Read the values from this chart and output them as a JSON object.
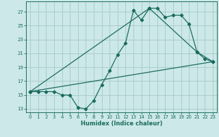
{
  "title": "",
  "xlabel": "Humidex (Indice chaleur)",
  "bg_color": "#cce8e8",
  "grid_color": "#aacccc",
  "line_color": "#1a6b5e",
  "xlim": [
    -0.5,
    23.5
  ],
  "ylim": [
    12.5,
    28.5
  ],
  "xticks": [
    0,
    1,
    2,
    3,
    4,
    5,
    6,
    7,
    8,
    9,
    10,
    11,
    12,
    13,
    14,
    15,
    16,
    17,
    18,
    19,
    20,
    21,
    22,
    23
  ],
  "yticks": [
    13,
    15,
    17,
    19,
    21,
    23,
    25,
    27
  ],
  "series1_x": [
    0,
    1,
    2,
    3,
    4,
    5,
    6,
    7,
    8,
    9,
    10,
    11,
    12,
    13,
    14,
    15,
    16,
    17,
    18,
    19,
    20,
    21,
    22,
    23
  ],
  "series1_y": [
    15.5,
    15.5,
    15.5,
    15.5,
    15.0,
    15.0,
    13.2,
    13.0,
    14.2,
    16.5,
    18.5,
    20.8,
    22.5,
    27.2,
    25.8,
    27.5,
    27.5,
    26.2,
    26.5,
    26.5,
    25.2,
    21.2,
    20.2,
    19.8
  ],
  "series2_x": [
    0,
    23
  ],
  "series2_y": [
    15.5,
    19.8
  ],
  "series3_x": [
    0,
    15,
    21,
    23
  ],
  "series3_y": [
    15.5,
    27.5,
    21.2,
    19.8
  ]
}
